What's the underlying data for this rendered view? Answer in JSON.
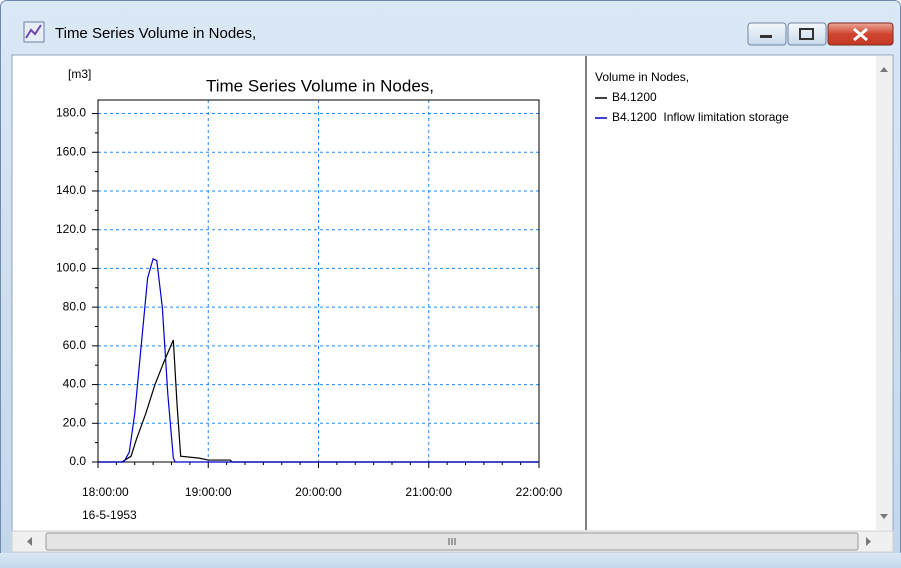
{
  "window": {
    "title": "Time Series Volume in Nodes,"
  },
  "chart_data": {
    "type": "line",
    "title": "Time Series Volume in Nodes,",
    "y_axis_label": "[m3]",
    "x_date_label": "16-5-1953",
    "legend_title": "Volume in Nodes,",
    "legend": "right",
    "grid": true,
    "xlim": [
      "1953-05-16T18:00:00",
      "1953-05-16T22:00:00"
    ],
    "xticks": [
      {
        "value": "1953-05-16T18:00:00",
        "label": "18:00:00"
      },
      {
        "value": "1953-05-16T19:00:00",
        "label": "19:00:00"
      },
      {
        "value": "1953-05-16T20:00:00",
        "label": "20:00:00"
      },
      {
        "value": "1953-05-16T21:00:00",
        "label": "21:00:00"
      },
      {
        "value": "1953-05-16T22:00:00",
        "label": "22:00:00"
      }
    ],
    "ylim": [
      0,
      187
    ],
    "yticks": [
      {
        "value": 0,
        "label": "0.0"
      },
      {
        "value": 20,
        "label": "20.0"
      },
      {
        "value": 40,
        "label": "40.0"
      },
      {
        "value": 60,
        "label": "60.0"
      },
      {
        "value": 80,
        "label": "80.0"
      },
      {
        "value": 100,
        "label": "100.0"
      },
      {
        "value": 120,
        "label": "120.0"
      },
      {
        "value": 140,
        "label": "140.0"
      },
      {
        "value": 160,
        "label": "160.0"
      },
      {
        "value": 180,
        "label": "180.0"
      }
    ],
    "series": [
      {
        "name": "B4.1200",
        "color": "#000000",
        "x": [
          "1953-05-16T18:00:00",
          "1953-05-16T18:13:00",
          "1953-05-16T18:18:00",
          "1953-05-16T18:21:00",
          "1953-05-16T18:26:00",
          "1953-05-16T18:31:00",
          "1953-05-16T18:36:00",
          "1953-05-16T18:41:00",
          "1953-05-16T18:43:00",
          "1953-05-16T18:45:00",
          "1953-05-16T18:55:00",
          "1953-05-16T19:00:00",
          "1953-05-16T19:12:00",
          "1953-05-16T19:13:00",
          "1953-05-16T22:00:00"
        ],
        "values": [
          0,
          0,
          3,
          12,
          25,
          40,
          52,
          63,
          30,
          3,
          2,
          1,
          1,
          0,
          0
        ]
      },
      {
        "name": "B4.1200  Inflow limitation storage",
        "color": "#0000cc",
        "x": [
          "1953-05-16T18:00:00",
          "1953-05-16T18:14:00",
          "1953-05-16T18:17:00",
          "1953-05-16T18:20:00",
          "1953-05-16T18:24:00",
          "1953-05-16T18:27:00",
          "1953-05-16T18:30:00",
          "1953-05-16T18:32:00",
          "1953-05-16T18:35:00",
          "1953-05-16T18:38:00",
          "1953-05-16T18:41:00",
          "1953-05-16T18:42:00",
          "1953-05-16T22:00:00"
        ],
        "values": [
          0,
          0,
          5,
          25,
          65,
          95,
          105,
          104,
          80,
          35,
          2,
          0,
          0
        ]
      }
    ]
  }
}
